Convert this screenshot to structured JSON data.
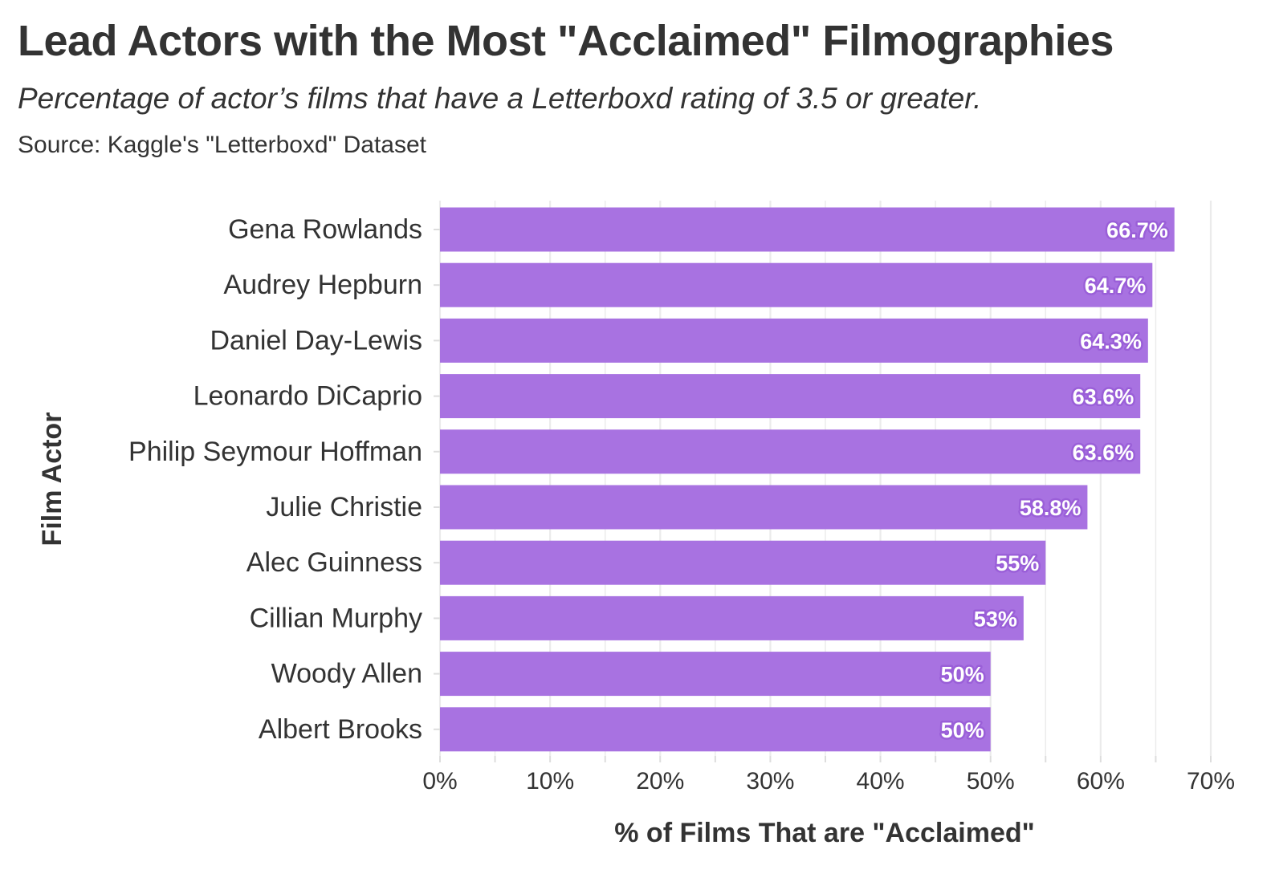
{
  "header": {
    "title": "Lead Actors with the Most \"Acclaimed\" Filmographies",
    "subtitle": "Percentage of actor’s films that have a Letterboxd rating of 3.5 or greater.",
    "source": "Source: Kaggle's \"Letterboxd\" Dataset"
  },
  "colors": {
    "bar": "#a872e1",
    "label_outline": "#9a5fd8",
    "grid": "#ebebeb",
    "text": "#333333"
  },
  "chart_data": {
    "type": "bar",
    "orientation": "horizontal",
    "categories": [
      "Gena Rowlands",
      "Audrey Hepburn",
      "Daniel Day-Lewis",
      "Leonardo DiCaprio",
      "Philip Seymour Hoffman",
      "Julie Christie",
      "Alec Guinness",
      "Cillian Murphy",
      "Woody Allen",
      "Albert Brooks"
    ],
    "values": [
      66.7,
      64.7,
      64.3,
      63.6,
      63.6,
      58.8,
      55,
      53,
      50,
      50
    ],
    "data_labels": [
      "66.7%",
      "64.7%",
      "64.3%",
      "63.6%",
      "63.6%",
      "58.8%",
      "55%",
      "53%",
      "50%",
      "50%"
    ],
    "xlabel": "% of Films That are \"Acclaimed\"",
    "ylabel": "Film Actor",
    "xlim": [
      0,
      70
    ],
    "xticks": [
      0,
      10,
      20,
      30,
      40,
      50,
      60,
      70
    ],
    "xtick_labels": [
      "0%",
      "10%",
      "20%",
      "30%",
      "40%",
      "50%",
      "60%",
      "70%"
    ],
    "grid": true,
    "legend": "none"
  }
}
